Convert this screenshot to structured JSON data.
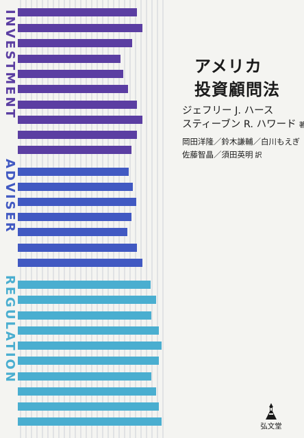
{
  "cover": {
    "title_lines": [
      "アメリカ",
      "投資顧問法"
    ],
    "authors": {
      "line1": "ジェフリー J. ハース",
      "line2": "スティーブン R. ハワード",
      "role": "著"
    },
    "translators": {
      "line1": "岡田洋隆／鈴木謙輔／白川もえぎ",
      "line2": "佐藤智晶／須田英明",
      "role": "訳"
    },
    "vertical_words": [
      "INVESTMENT",
      "ADVISER",
      "REGULATION"
    ],
    "publisher": {
      "name": "弘文堂",
      "logo_icon": "publisher-logo-icon"
    }
  },
  "colors": {
    "background": "#f4f4f1",
    "purple": "#5b3ea2",
    "blue": "#4159c2",
    "cyan": "#4aaed0",
    "grid_line": "#c4c6d2"
  }
}
